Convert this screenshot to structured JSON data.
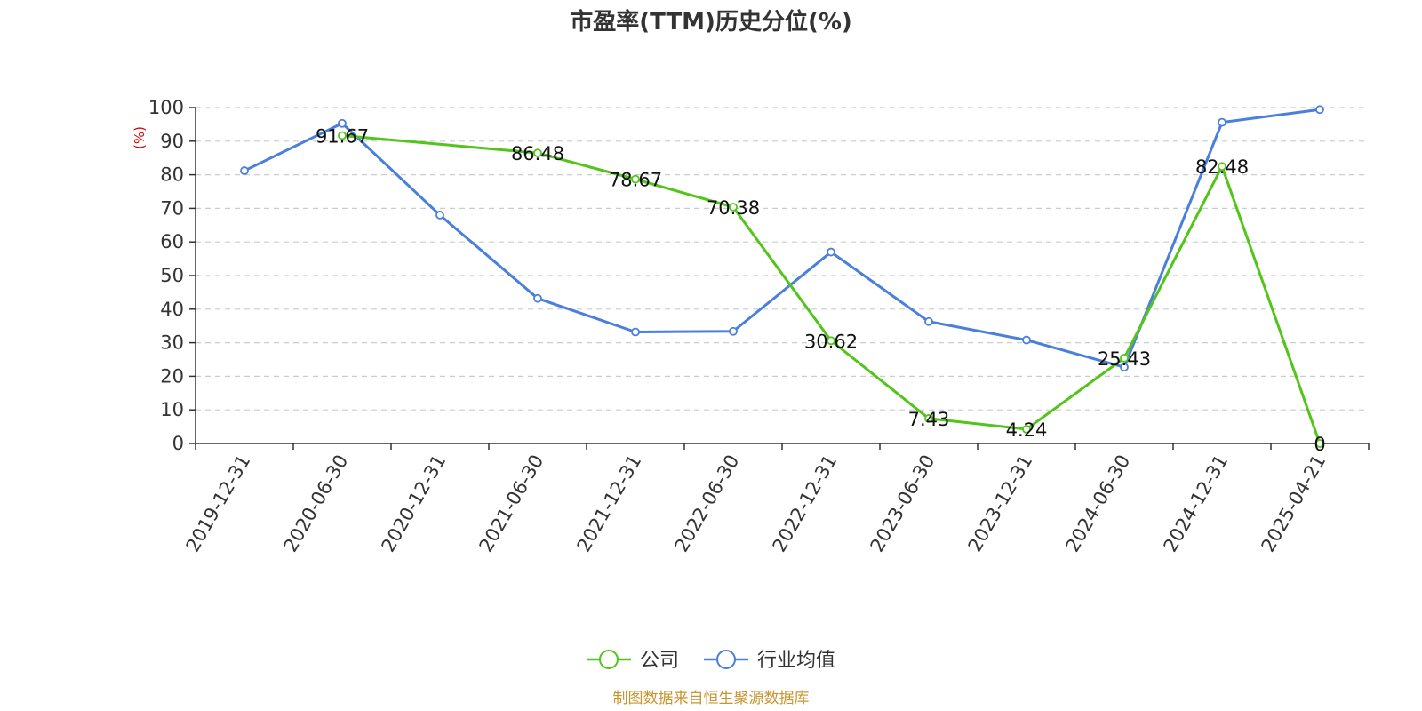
{
  "chart_data": {
    "type": "line",
    "title": "市盈率(TTM)历史分位(%)",
    "ylabel": "(%)",
    "ylim": [
      0,
      100
    ],
    "yticks": [
      0,
      10,
      20,
      30,
      40,
      50,
      60,
      70,
      80,
      90,
      100
    ],
    "categories": [
      "2019-12-31",
      "2020-06-30",
      "2020-12-31",
      "2021-06-30",
      "2021-12-31",
      "2022-06-30",
      "2022-12-31",
      "2023-06-30",
      "2023-12-31",
      "2024-06-30",
      "2024-12-31",
      "2025-04-21"
    ],
    "grid": true,
    "legend_position": "bottom-center",
    "series": [
      {
        "name": "公司",
        "color": "#52c41a",
        "values": [
          null,
          91.67,
          null,
          86.48,
          78.67,
          70.38,
          30.62,
          7.43,
          4.24,
          25.43,
          82.48,
          0
        ],
        "labels": [
          "",
          "91.67",
          "",
          "86.48",
          "78.67",
          "70.38",
          "30.62",
          "7.43",
          "4.24",
          "25.43",
          "82.48",
          "0"
        ]
      },
      {
        "name": "行业均值",
        "color": "#4a7fdc",
        "values": [
          81.2,
          95.3,
          68.0,
          43.2,
          33.2,
          33.4,
          57.0,
          36.3,
          30.8,
          22.7,
          95.6,
          99.4
        ]
      }
    ],
    "source": "制图数据来自恒生聚源数据库"
  }
}
